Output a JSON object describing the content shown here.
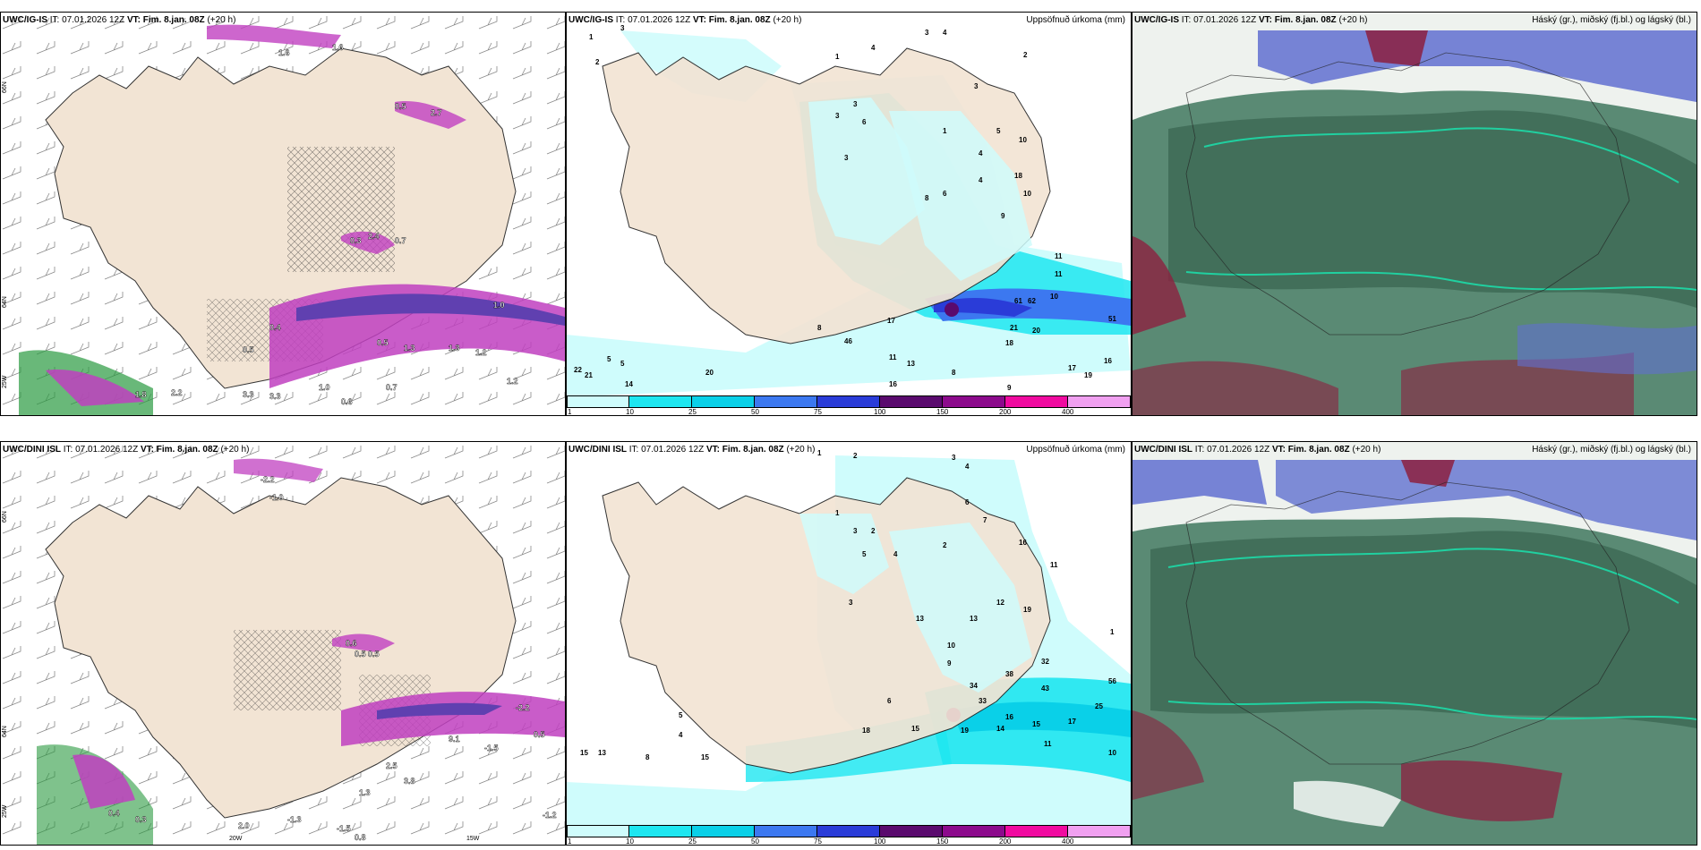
{
  "panels": {
    "top_left": {
      "model": "UWC/IG-IS",
      "it_label": "IT:",
      "it": "07.01.2026 12Z",
      "vt_label": "VT:",
      "vt": "Fim. 8.jan. 08Z",
      "lead": "(+20 h)"
    },
    "top_mid": {
      "model": "UWC/IG-IS",
      "it_label": "IT:",
      "it": "07.01.2026 12Z",
      "vt_label": "VT:",
      "vt": "Fim. 8.jan. 08Z",
      "lead": "(+20 h)",
      "right": "Uppsöfnuð úrkoma (mm)"
    },
    "top_right": {
      "model": "UWC/IG-IS",
      "it_label": "IT:",
      "it": "07.01.2026 12Z",
      "vt_label": "VT:",
      "vt": "Fim. 8.jan. 08Z",
      "lead": "(+20 h)",
      "right": "Háský (gr.), miðský (fj.bl.) og lágský (bl.)"
    },
    "bot_left": {
      "model": "UWC/DINI ISL",
      "it_label": "IT:",
      "it": "07.01.2026 12Z",
      "vt_label": "VT:",
      "vt": "Fim. 8.jan. 08Z",
      "lead": "(+20 h)"
    },
    "bot_mid": {
      "model": "UWC/DINI ISL",
      "it_label": "IT:",
      "it": "07.01.2026 12Z",
      "vt_label": "VT:",
      "vt": "Fim. 8.jan. 08Z",
      "lead": "(+20 h)",
      "right": "Uppsöfnuð úrkoma (mm)"
    },
    "bot_right": {
      "model": "UWC/DINI ISL",
      "it_label": "IT:",
      "it": "07.01.2026 12Z",
      "vt_label": "VT:",
      "vt": "Fim. 8.jan. 08Z",
      "lead": "(+20 h)",
      "right": "Háský (gr.), miðský (fj.bl.) og lágský (bl.)"
    }
  },
  "colorbar": {
    "ticks": [
      "1",
      "10",
      "25",
      "50",
      "75",
      "100",
      "150",
      "200",
      "400"
    ],
    "colors": [
      "#cffcfc",
      "#1ee6f0",
      "#0ad0e8",
      "#3c78f0",
      "#2a3cd8",
      "#5a0a6e",
      "#8c0a8c",
      "#f00aa0",
      "#f0a0f0"
    ]
  },
  "lat_labels": {
    "top": [
      "66N",
      "64N",
      "25W"
    ],
    "bottom": [
      "66N",
      "64N",
      "25W",
      "20W",
      "15W"
    ]
  },
  "colors": {
    "land": "#f2e4d4",
    "sea": "#ffffff",
    "precip_light": "#cffcfc",
    "precip_cyan": "#1ee6f0",
    "precip_blue": "#3c78f0",
    "high_cloud": "#5a8a74",
    "mid_cloud": "#6070d0",
    "low_cloud": "#8c2040"
  },
  "precip_labels_top": [
    "1",
    "3",
    "2",
    "1",
    "4",
    "3",
    "4",
    "2",
    "3",
    "3",
    "6",
    "1",
    "3",
    "3",
    "4",
    "5",
    "4",
    "10",
    "8",
    "6",
    "9",
    "10",
    "18",
    "11",
    "10",
    "11",
    "61",
    "62",
    "51",
    "17",
    "16",
    "21",
    "20",
    "18",
    "46",
    "8",
    "9",
    "13",
    "16",
    "17",
    "19",
    "22",
    "21",
    "14",
    "20",
    "5",
    "5",
    "11",
    "8"
  ],
  "precip_labels_bottom": [
    "2",
    "1",
    "4",
    "3",
    "1",
    "3",
    "2",
    "5",
    "2",
    "6",
    "4",
    "7",
    "16",
    "3",
    "13",
    "13",
    "12",
    "19",
    "10",
    "9",
    "34",
    "38",
    "32",
    "43",
    "56",
    "33",
    "6",
    "18",
    "15",
    "16",
    "19",
    "14",
    "15",
    "17",
    "25",
    "11",
    "10",
    "15",
    "13",
    "8",
    "15",
    "5",
    "4",
    "1",
    "11"
  ],
  "wind_labels_top": [
    "1.6",
    "1.6",
    "2.7",
    "0.5",
    "0.3",
    "2.4",
    "0.4",
    "0.7",
    "1.0",
    "0.5",
    "1.3",
    "0.5",
    "1.3",
    "3.3",
    "1.8",
    "2.2",
    "0.6",
    "1.0",
    "0.7",
    "3.3",
    "1.2",
    "1.2"
  ],
  "wind_labels_bottom": [
    "-1.0",
    "-2.2",
    "0.6",
    "0.5",
    "0.5",
    "-1.5",
    "-1.5",
    "0.8",
    "2.5",
    "3.8",
    "9.1",
    "-1.3",
    "-1.2",
    "1.3",
    "2.0",
    "0.4",
    "0.3",
    "-2.2",
    "0.5"
  ]
}
